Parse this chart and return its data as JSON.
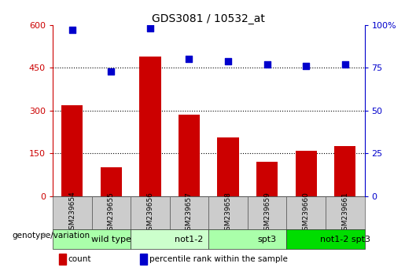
{
  "title": "GDS3081 / 10532_at",
  "categories": [
    "GSM239654",
    "GSM239655",
    "GSM239656",
    "GSM239657",
    "GSM239658",
    "GSM239659",
    "GSM239660",
    "GSM239661"
  ],
  "bar_values": [
    320,
    100,
    490,
    285,
    205,
    120,
    158,
    175
  ],
  "scatter_values": [
    97,
    73,
    98,
    80,
    79,
    77,
    76,
    77
  ],
  "ylim_left": [
    0,
    600
  ],
  "ylim_right": [
    0,
    100
  ],
  "yticks_left": [
    0,
    150,
    300,
    450,
    600
  ],
  "yticks_right": [
    0,
    25,
    50,
    75,
    100
  ],
  "bar_color": "#cc0000",
  "scatter_color": "#0000cc",
  "groups": [
    {
      "label": "wild type",
      "start": 0,
      "end": 2,
      "color": "#aaffaa"
    },
    {
      "label": "not1-2",
      "start": 2,
      "end": 4,
      "color": "#ccffcc"
    },
    {
      "label": "spt3",
      "start": 4,
      "end": 6,
      "color": "#aaffaa"
    },
    {
      "label": "not1-2 spt3",
      "start": 6,
      "end": 8,
      "color": "#00dd00"
    }
  ],
  "legend_items": [
    {
      "label": "count",
      "color": "#cc0000"
    },
    {
      "label": "percentile rank within the sample",
      "color": "#0000cc"
    }
  ],
  "genotype_label": "genotype/variation",
  "left_axis_color": "#cc0000",
  "right_axis_color": "#0000cc",
  "tick_bg_color": "#cccccc"
}
